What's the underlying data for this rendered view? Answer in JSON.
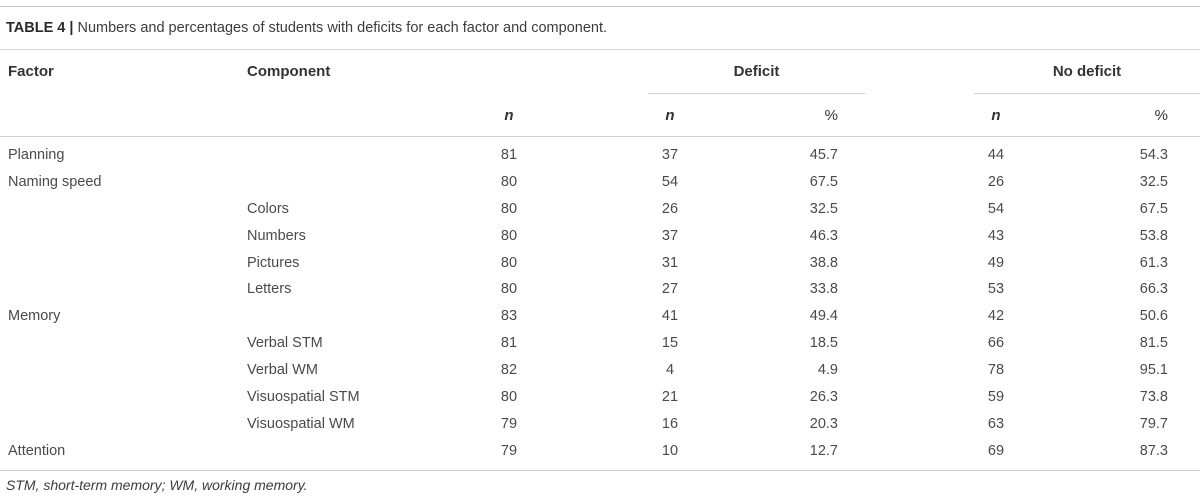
{
  "caption": {
    "label": "TABLE 4 |",
    "text": "Numbers and percentages of students with deficits for each factor and component."
  },
  "headers": {
    "factor": "Factor",
    "component": "Component",
    "deficit": "Deficit",
    "no_deficit": "No deficit"
  },
  "subheaders": {
    "n_total": "n",
    "deficit_n": "n",
    "deficit_pct": "%",
    "no_deficit_n": "n",
    "no_deficit_pct": "%"
  },
  "rows": [
    {
      "factor": "Planning",
      "component": "",
      "n": "81",
      "def_n": "37",
      "def_pct": "45.7",
      "nodef_n": "44",
      "nodef_pct": "54.3"
    },
    {
      "factor": "Naming speed",
      "component": "",
      "n": "80",
      "def_n": "54",
      "def_pct": "67.5",
      "nodef_n": "26",
      "nodef_pct": "32.5"
    },
    {
      "factor": "",
      "component": "Colors",
      "n": "80",
      "def_n": "26",
      "def_pct": "32.5",
      "nodef_n": "54",
      "nodef_pct": "67.5"
    },
    {
      "factor": "",
      "component": "Numbers",
      "n": "80",
      "def_n": "37",
      "def_pct": "46.3",
      "nodef_n": "43",
      "nodef_pct": "53.8"
    },
    {
      "factor": "",
      "component": "Pictures",
      "n": "80",
      "def_n": "31",
      "def_pct": "38.8",
      "nodef_n": "49",
      "nodef_pct": "61.3"
    },
    {
      "factor": "",
      "component": "Letters",
      "n": "80",
      "def_n": "27",
      "def_pct": "33.8",
      "nodef_n": "53",
      "nodef_pct": "66.3"
    },
    {
      "factor": "Memory",
      "component": "",
      "n": "83",
      "def_n": "41",
      "def_pct": "49.4",
      "nodef_n": "42",
      "nodef_pct": "50.6"
    },
    {
      "factor": "",
      "component": "Verbal STM",
      "n": "81",
      "def_n": "15",
      "def_pct": "18.5",
      "nodef_n": "66",
      "nodef_pct": "81.5"
    },
    {
      "factor": "",
      "component": "Verbal WM",
      "n": "82",
      "def_n": "4",
      "def_pct": "4.9",
      "nodef_n": "78",
      "nodef_pct": "95.1"
    },
    {
      "factor": "",
      "component": "Visuospatial STM",
      "n": "80",
      "def_n": "21",
      "def_pct": "26.3",
      "nodef_n": "59",
      "nodef_pct": "73.8"
    },
    {
      "factor": "",
      "component": "Visuospatial WM",
      "n": "79",
      "def_n": "16",
      "def_pct": "20.3",
      "nodef_n": "63",
      "nodef_pct": "79.7"
    },
    {
      "factor": "Attention",
      "component": "",
      "n": "79",
      "def_n": "10",
      "def_pct": "12.7",
      "nodef_n": "69",
      "nodef_pct": "87.3"
    }
  ],
  "footnote": "STM, short-term memory; WM, working memory."
}
